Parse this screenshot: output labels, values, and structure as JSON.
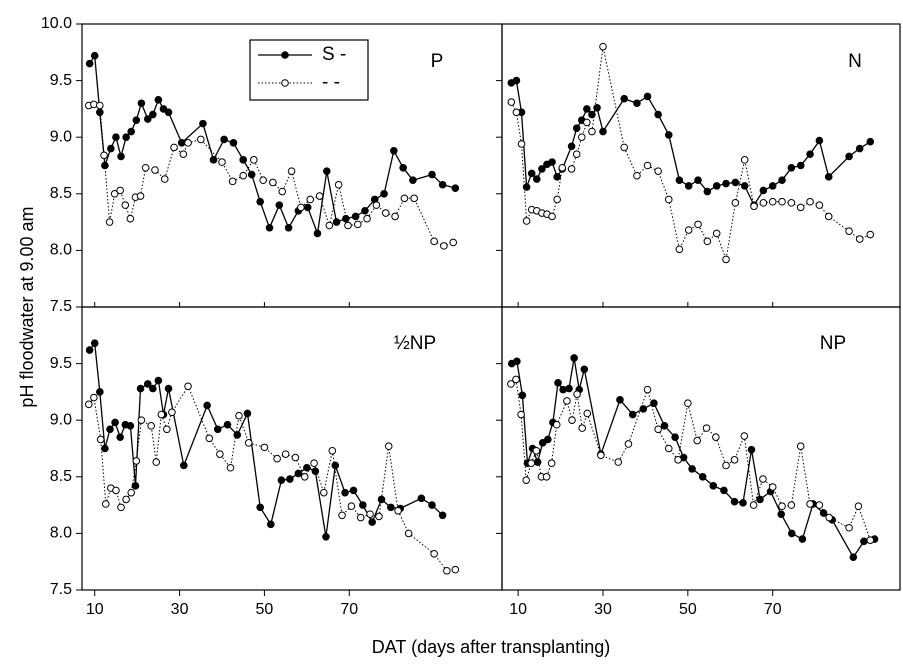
{
  "ylabel": "pH floodwater at 9.00 am",
  "xlabel": "DAT (days after transplanting)",
  "chart_data": [
    {
      "type": "line",
      "title": "P",
      "xlim": [
        7,
        106
      ],
      "ylim": [
        7.5,
        10
      ],
      "xticks": [
        10,
        30,
        50,
        70
      ],
      "show_xtick_labels": false,
      "yticks": [
        7.5,
        {
          "value": 8,
          "label": "8.0"
        },
        8.5,
        {
          "value": 9,
          "label": "9.0"
        },
        9.5,
        {
          "value": 10,
          "label": "10.0"
        }
      ],
      "show_ytick_labels": true,
      "legend": true,
      "series": [
        {
          "name": "S -",
          "color": "#000000",
          "marker": "filled",
          "linestyle": "solid",
          "x": [
            8.8,
            10,
            11.2,
            12.4,
            13.8,
            15,
            16.2,
            17.4,
            18.6,
            19.8,
            21,
            22.5,
            23.7,
            25,
            26.2,
            27.4,
            30.5,
            35.5,
            38,
            40.5,
            42.7,
            45,
            47,
            49,
            51.2,
            53.5,
            55.7,
            58,
            60.2,
            62.5,
            64.7,
            67,
            69.2,
            71.5,
            73.7,
            76,
            78.2,
            80.5,
            82.7,
            85,
            89.5,
            92,
            95
          ],
          "values": [
            9.65,
            9.72,
            9.22,
            8.75,
            8.9,
            9.0,
            8.83,
            9.0,
            9.05,
            9.15,
            9.3,
            9.16,
            9.2,
            9.33,
            9.25,
            9.22,
            8.95,
            9.12,
            8.8,
            8.98,
            8.95,
            8.8,
            8.67,
            8.43,
            8.2,
            8.4,
            8.2,
            8.35,
            8.38,
            8.15,
            8.7,
            8.25,
            8.28,
            8.3,
            8.35,
            8.45,
            8.5,
            8.88,
            8.73,
            8.62,
            8.67,
            8.58,
            8.55
          ]
        },
        {
          "name": "- -",
          "color": "#000000",
          "marker": "open",
          "linestyle": "dotted",
          "x": [
            8.6,
            9.8,
            11.2,
            12.2,
            13.5,
            14.7,
            16,
            17.2,
            18.4,
            19.6,
            20.8,
            22,
            24.2,
            26.5,
            28.7,
            30.9,
            32,
            35,
            40,
            42.5,
            45,
            47.5,
            49.7,
            52,
            54.2,
            56.4,
            58.6,
            60.8,
            63,
            65.3,
            67.5,
            69.7,
            72,
            74.2,
            76.4,
            78.6,
            80.8,
            83,
            85.3,
            90,
            92.3,
            94.5
          ],
          "values": [
            9.28,
            9.29,
            9.28,
            8.84,
            8.25,
            8.5,
            8.53,
            8.4,
            8.28,
            8.47,
            8.48,
            8.73,
            8.71,
            8.63,
            8.91,
            8.85,
            8.95,
            8.98,
            8.78,
            8.61,
            8.66,
            8.8,
            8.62,
            8.6,
            8.52,
            8.7,
            8.38,
            8.45,
            8.48,
            8.22,
            8.58,
            8.22,
            8.23,
            8.28,
            8.4,
            8.33,
            8.3,
            8.46,
            8.46,
            8.08,
            8.04,
            8.07
          ]
        }
      ]
    },
    {
      "type": "line",
      "title": "N",
      "xlim": [
        6.2,
        100
      ],
      "ylim": [
        7.5,
        10
      ],
      "xticks": [
        10,
        30,
        50,
        70
      ],
      "show_xtick_labels": false,
      "yticks": [
        7.5,
        8,
        8.5,
        9,
        9.5,
        10
      ],
      "show_ytick_labels": false,
      "series": [
        {
          "color": "#000000",
          "marker": "filled",
          "linestyle": "solid",
          "x": [
            8.4,
            9.6,
            10.8,
            12,
            13.2,
            14.4,
            15.6,
            16.8,
            18,
            19.2,
            20.4,
            22.6,
            23.8,
            25,
            26.2,
            27.4,
            28.6,
            30,
            35,
            38,
            40.5,
            43,
            45.5,
            48,
            50.2,
            52.4,
            54.6,
            56.8,
            59,
            61.2,
            63.4,
            65.6,
            67.8,
            70,
            72.2,
            74.4,
            76.6,
            78.8,
            81,
            83.2,
            88,
            90.5,
            93
          ],
          "values": [
            9.48,
            9.5,
            9.22,
            8.56,
            8.68,
            8.63,
            8.72,
            8.76,
            8.78,
            8.65,
            8.72,
            8.92,
            9.08,
            9.15,
            9.25,
            9.2,
            9.26,
            9.05,
            9.34,
            9.3,
            9.36,
            9.2,
            9.02,
            8.62,
            8.57,
            8.62,
            8.52,
            8.57,
            8.59,
            8.6,
            8.57,
            8.4,
            8.53,
            8.57,
            8.62,
            8.73,
            8.75,
            8.85,
            8.97,
            8.65,
            8.83,
            8.9,
            8.96
          ]
        },
        {
          "color": "#000000",
          "marker": "open",
          "linestyle": "dotted",
          "x": [
            8.4,
            9.6,
            10.8,
            12,
            13.2,
            14.4,
            15.6,
            16.8,
            18,
            19.2,
            20.4,
            22.6,
            23.8,
            25,
            26.2,
            27.4,
            30,
            35,
            38,
            40.5,
            43,
            45.5,
            48,
            50.2,
            52.4,
            54.6,
            56.8,
            59,
            61.2,
            63.4,
            65.6,
            67.8,
            70,
            72.2,
            74.4,
            76.6,
            78.8,
            81,
            83.2,
            88,
            90.5,
            93
          ],
          "values": [
            9.31,
            9.22,
            8.94,
            8.26,
            8.36,
            8.35,
            8.33,
            8.32,
            8.3,
            8.45,
            8.73,
            8.72,
            8.85,
            9.0,
            9.13,
            9.05,
            9.8,
            8.91,
            8.66,
            8.75,
            8.7,
            8.45,
            8.01,
            8.18,
            8.23,
            8.08,
            8.15,
            7.92,
            8.42,
            8.8,
            8.39,
            8.42,
            8.43,
            8.43,
            8.42,
            8.38,
            8.43,
            8.4,
            8.3,
            8.17,
            8.1,
            8.14
          ]
        }
      ]
    },
    {
      "type": "line",
      "title": "½NP",
      "xlim": [
        7,
        106
      ],
      "ylim": [
        7.5,
        10
      ],
      "xticks": [
        10,
        30,
        50,
        70
      ],
      "show_xtick_labels": true,
      "yticks": [
        7.5,
        {
          "value": 8,
          "label": "8.0"
        },
        8.5,
        {
          "value": 9,
          "label": "9.0"
        },
        9.5
      ],
      "show_ytick_labels": true,
      "series": [
        {
          "color": "#000000",
          "marker": "filled",
          "linestyle": "solid",
          "x": [
            8.8,
            10,
            11.2,
            12.4,
            13.6,
            14.8,
            16,
            17.2,
            18.4,
            19.6,
            20.8,
            22.5,
            23.7,
            25,
            26.2,
            27.4,
            31,
            36.5,
            39,
            41.3,
            43.6,
            46,
            49,
            51.5,
            54,
            56,
            58,
            60,
            62,
            64.5,
            66.7,
            69,
            71,
            73.2,
            75.4,
            77.6,
            79.8,
            82,
            87,
            89.5,
            92
          ],
          "values": [
            9.62,
            9.68,
            9.25,
            8.75,
            8.92,
            8.98,
            8.85,
            8.96,
            8.95,
            8.42,
            9.28,
            9.32,
            9.28,
            9.35,
            9.05,
            9.28,
            8.6,
            9.13,
            8.92,
            8.96,
            8.87,
            9.06,
            8.23,
            8.08,
            8.47,
            8.48,
            8.53,
            8.58,
            8.55,
            7.97,
            8.6,
            8.36,
            8.38,
            8.25,
            8.1,
            8.3,
            8.23,
            8.22,
            8.31,
            8.25,
            8.16
          ]
        },
        {
          "color": "#000000",
          "marker": "open",
          "linestyle": "dotted",
          "x": [
            8.6,
            9.8,
            11.4,
            12.6,
            13.8,
            15,
            16.2,
            17.4,
            18.6,
            19.8,
            21,
            23.3,
            24.5,
            25.7,
            27,
            28.2,
            32,
            37,
            39.5,
            42,
            44,
            46.3,
            50,
            53,
            55,
            57.3,
            59.5,
            61.7,
            64,
            66,
            68.3,
            70.5,
            72.7,
            74.9,
            77,
            79.3,
            81.5,
            84,
            90,
            93,
            95
          ],
          "values": [
            9.14,
            9.2,
            8.83,
            8.26,
            8.4,
            8.38,
            8.23,
            8.3,
            8.36,
            8.64,
            9.0,
            8.95,
            8.63,
            9.05,
            8.92,
            9.07,
            9.3,
            8.84,
            8.7,
            8.58,
            9.04,
            8.8,
            8.76,
            8.66,
            8.7,
            8.67,
            8.5,
            8.62,
            8.36,
            8.73,
            8.16,
            8.24,
            8.14,
            8.17,
            8.15,
            8.77,
            8.2,
            8.0,
            7.82,
            7.67,
            7.68
          ]
        }
      ]
    },
    {
      "type": "line",
      "title": "NP",
      "xlim": [
        6.2,
        100
      ],
      "ylim": [
        7.5,
        10
      ],
      "xticks": [
        10,
        30,
        50,
        70
      ],
      "show_xtick_labels": true,
      "yticks": [
        7.5,
        8,
        8.5,
        9,
        9.5,
        10
      ],
      "show_ytick_labels": false,
      "series": [
        {
          "color": "#000000",
          "marker": "filled",
          "linestyle": "solid",
          "x": [
            8.5,
            9.7,
            11,
            12.2,
            13.4,
            14.6,
            15.8,
            17,
            18.2,
            19.4,
            20.6,
            22,
            23.2,
            24.4,
            25.6,
            29.5,
            34,
            37,
            39.5,
            42,
            44.5,
            47,
            49,
            51,
            53.5,
            56,
            58.5,
            61,
            63,
            65,
            67,
            69.5,
            72,
            74.5,
            77,
            79.5,
            82,
            84,
            89,
            91.5,
            94
          ],
          "values": [
            9.5,
            9.52,
            9.22,
            8.62,
            8.75,
            8.63,
            8.8,
            8.83,
            8.98,
            9.33,
            9.27,
            9.28,
            9.55,
            9.27,
            9.45,
            8.7,
            9.18,
            9.05,
            9.1,
            9.15,
            8.95,
            8.85,
            8.67,
            8.57,
            8.5,
            8.42,
            8.38,
            8.28,
            8.27,
            8.74,
            8.3,
            8.37,
            8.17,
            8.0,
            7.95,
            8.26,
            8.18,
            8.12,
            7.79,
            7.93,
            7.95
          ]
        },
        {
          "color": "#000000",
          "marker": "open",
          "linestyle": "dotted",
          "x": [
            8.3,
            9.5,
            10.7,
            11.9,
            13.1,
            14.3,
            15.5,
            16.7,
            17.9,
            19.1,
            21.5,
            22.7,
            23.9,
            25.1,
            26.3,
            29.5,
            33.6,
            36,
            40.5,
            43,
            45.5,
            47.7,
            50,
            52.2,
            54.4,
            56.6,
            59,
            61,
            63.3,
            65.5,
            67.7,
            70,
            72.2,
            74.4,
            76.6,
            78.8,
            81,
            83.3,
            88,
            90.2,
            93
          ],
          "values": [
            9.32,
            9.36,
            9.05,
            8.47,
            8.62,
            8.73,
            8.5,
            8.5,
            8.62,
            8.96,
            9.17,
            9.0,
            9.23,
            8.93,
            9.06,
            8.69,
            8.63,
            8.79,
            9.27,
            8.92,
            8.75,
            8.65,
            9.15,
            8.82,
            8.93,
            8.85,
            8.6,
            8.65,
            8.86,
            8.25,
            8.48,
            8.41,
            8.24,
            8.25,
            8.77,
            8.26,
            8.25,
            8.14,
            8.05,
            8.24,
            7.94
          ]
        }
      ]
    }
  ]
}
